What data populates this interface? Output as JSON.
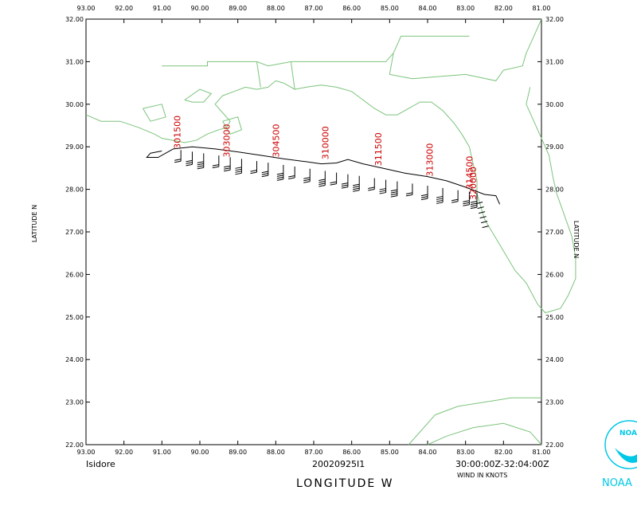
{
  "map": {
    "lon_range": [
      -93,
      -81
    ],
    "lat_range": [
      22,
      32
    ],
    "x_ticks": [
      "93.00",
      "92.00",
      "91.00",
      "90.00",
      "89.00",
      "88.00",
      "87.00",
      "86.00",
      "85.00",
      "84.00",
      "83.00",
      "82.00",
      "81.00"
    ],
    "y_ticks": [
      "22.00",
      "23.00",
      "24.00",
      "25.00",
      "26.00",
      "27.00",
      "28.00",
      "29.00",
      "30.00",
      "31.00",
      "32.00"
    ],
    "coast_color": "#7cc47c",
    "track_color": "#000000",
    "label_color": "#cc0000"
  },
  "track_labels": [
    {
      "text": "301500",
      "lon": -90.6,
      "lat": 28.95
    },
    {
      "text": "303000",
      "lon": -89.3,
      "lat": 28.75
    },
    {
      "text": "304500",
      "lon": -88.0,
      "lat": 28.75
    },
    {
      "text": "310000",
      "lon": -86.7,
      "lat": 28.7
    },
    {
      "text": "311500",
      "lon": -85.3,
      "lat": 28.55
    },
    {
      "text": "313000",
      "lon": -83.95,
      "lat": 28.3
    },
    {
      "text": "314500",
      "lon": -82.9,
      "lat": 28.0
    },
    {
      "text": "320000",
      "lon": -82.8,
      "lat": 27.75
    }
  ],
  "axes": {
    "xlabel": "LONGITUDE   W",
    "ylabel": "LATITUDE   N"
  },
  "footer": {
    "storm": "Isidore",
    "id": "20020925I1",
    "time_range": "30:00:00Z-32:04:00Z",
    "units": "WIND IN KNOTS"
  },
  "logo": {
    "text": "NOAA",
    "badge": "NOAA",
    "color": "#00c8e6"
  }
}
